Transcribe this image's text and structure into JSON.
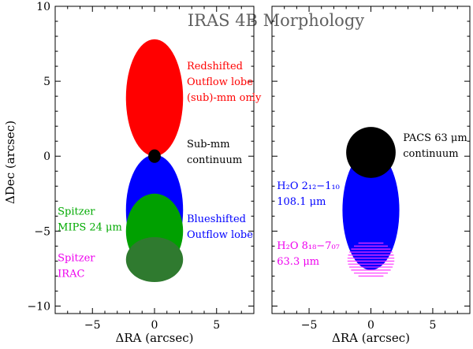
{
  "chart_data": {
    "type": "scatter",
    "title": "IRAS 4B Morphology",
    "ylabel": "ΔDec (arcsec)",
    "ylim": [
      -10.5,
      10
    ],
    "yticks": [
      -10,
      -5,
      0,
      5,
      10
    ],
    "grid": false,
    "panels": [
      {
        "id": "left",
        "xlabel": "ΔRA (arcsec)",
        "xlim": [
          -8,
          8
        ],
        "xticks": [
          -5,
          0,
          5
        ],
        "shapes": [
          {
            "name": "red-lobe",
            "kind": "ellipse",
            "cx": 0,
            "cy": 3.9,
            "rx": 2.3,
            "ry": 3.9,
            "color": "#ff0000"
          },
          {
            "name": "blue-lobe",
            "kind": "ellipse",
            "cx": 0,
            "cy": -3.6,
            "rx": 2.3,
            "ry": 3.7,
            "color": "#0000ff"
          },
          {
            "name": "green-blob",
            "kind": "ellipse",
            "cx": 0,
            "cy": -5.0,
            "rx": 2.3,
            "ry": 2.5,
            "color": "#00a000"
          },
          {
            "name": "irac-blob",
            "kind": "ellipse",
            "cx": 0,
            "cy": -6.9,
            "rx": 2.3,
            "ry": 1.5,
            "color": "#2f7a2f"
          },
          {
            "name": "submm-core",
            "kind": "ellipse",
            "cx": 0,
            "cy": 0.0,
            "rx": 0.5,
            "ry": 0.45,
            "color": "#000000"
          }
        ],
        "labels": [
          {
            "lines": [
              "Redshifted",
              "Outflow lobe",
              "(sub)-mm only"
            ],
            "x": 2.6,
            "y": 5.8,
            "color": "#ff0000"
          },
          {
            "lines": [
              "Sub-mm",
              "continuum"
            ],
            "x": 2.6,
            "y": 0.6,
            "color": "#000000"
          },
          {
            "lines": [
              "Spitzer",
              "MIPS 24 μm"
            ],
            "x": -7.8,
            "y": -3.9,
            "color": "#00aa00"
          },
          {
            "lines": [
              "Blueshifted",
              "Outflow lobe"
            ],
            "x": 2.6,
            "y": -4.4,
            "color": "#0000ff"
          },
          {
            "lines": [
              "Spitzer",
              "IRAC"
            ],
            "x": -7.8,
            "y": -7.0,
            "color": "#ee00ee"
          }
        ]
      },
      {
        "id": "right",
        "xlabel": "ΔRA (arcsec)",
        "xlim": [
          -8,
          8
        ],
        "xticks": [
          -5,
          0,
          5
        ],
        "shapes": [
          {
            "name": "blue-core",
            "kind": "ellipse",
            "cx": 0,
            "cy": -3.6,
            "rx": 2.3,
            "ry": 4.0,
            "color": "#0000ff"
          },
          {
            "name": "magenta-hatch",
            "kind": "hatch-ellipse",
            "cx": 0,
            "cy": -6.9,
            "rx": 1.9,
            "ry": 1.3,
            "color": "#ff33ff"
          },
          {
            "name": "black-core",
            "kind": "ellipse",
            "cx": 0,
            "cy": 0.25,
            "rx": 2.0,
            "ry": 1.7,
            "color": "#000000"
          }
        ],
        "labels": [
          {
            "lines": [
              "PACS 63 μm",
              "continuum"
            ],
            "x": 2.6,
            "y": 1.0,
            "color": "#000000"
          },
          {
            "lines": [
              "H₂O 2₁₂−1₁₀",
              "108.1 μm"
            ],
            "x": -7.6,
            "y": -2.2,
            "color": "#0000ff"
          },
          {
            "lines": [
              "H₂O 8₁₈−7₀₇",
              "63.3 μm"
            ],
            "x": -7.6,
            "y": -6.2,
            "color": "#ee00ee"
          }
        ]
      }
    ]
  }
}
